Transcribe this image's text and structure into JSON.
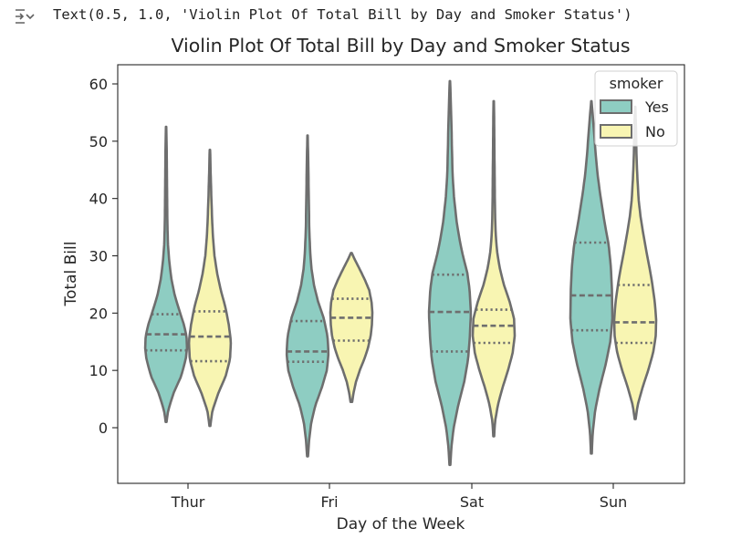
{
  "output": {
    "text": "Text(0.5, 1.0, 'Violin Plot Of Total Bill by Day and Smoker Status')",
    "icon": "output-expand-icon"
  },
  "colors": {
    "yes": "#8ecdc2",
    "no": "#f8f5b2",
    "edge": "#6e6e6e",
    "text": "#262626"
  },
  "chart_data": {
    "type": "violin",
    "title": "Violin Plot Of Total Bill by Day and Smoker Status",
    "xlabel": "Day of the Week",
    "ylabel": "Total Bill",
    "categories": [
      "Thur",
      "Fri",
      "Sat",
      "Sun"
    ],
    "ylim": [
      -10,
      65
    ],
    "yticks": [
      0,
      10,
      20,
      30,
      40,
      50,
      60
    ],
    "grid": false,
    "legend": {
      "title": "smoker",
      "placement": "top-right",
      "entries": [
        "Yes",
        "No"
      ]
    },
    "series": [
      {
        "name": "Yes",
        "violins": [
          {
            "category": "Thur",
            "min": 1,
            "max": 52.5,
            "q1": 13.5,
            "median": 16.3,
            "q3": 19.8,
            "profile": [
              [
                1,
                0.02
              ],
              [
                3,
                0.1
              ],
              [
                6,
                0.35
              ],
              [
                9,
                0.72
              ],
              [
                12,
                0.94
              ],
              [
                14,
                1.0
              ],
              [
                16,
                0.97
              ],
              [
                18,
                0.85
              ],
              [
                20,
                0.67
              ],
              [
                23,
                0.42
              ],
              [
                26,
                0.25
              ],
              [
                29,
                0.15
              ],
              [
                32,
                0.09
              ],
              [
                36,
                0.06
              ],
              [
                40,
                0.05
              ],
              [
                44,
                0.04
              ],
              [
                48,
                0.03
              ],
              [
                52.5,
                0.01
              ]
            ]
          },
          {
            "category": "Fri",
            "min": -5,
            "max": 51,
            "q1": 11.5,
            "median": 13.3,
            "q3": 18.6,
            "profile": [
              [
                -5,
                0.02
              ],
              [
                -2,
                0.08
              ],
              [
                1,
                0.18
              ],
              [
                4,
                0.38
              ],
              [
                7,
                0.68
              ],
              [
                10,
                0.92
              ],
              [
                13,
                1.0
              ],
              [
                16,
                0.95
              ],
              [
                19,
                0.78
              ],
              [
                22,
                0.5
              ],
              [
                25,
                0.3
              ],
              [
                28,
                0.18
              ],
              [
                31,
                0.12
              ],
              [
                35,
                0.08
              ],
              [
                40,
                0.06
              ],
              [
                45,
                0.04
              ],
              [
                51,
                0.01
              ]
            ]
          },
          {
            "category": "Sat",
            "min": -6.5,
            "max": 60.5,
            "q1": 13.3,
            "median": 20.2,
            "q3": 26.7,
            "profile": [
              [
                -6.5,
                0.02
              ],
              [
                -3,
                0.08
              ],
              [
                0,
                0.18
              ],
              [
                4,
                0.4
              ],
              [
                8,
                0.68
              ],
              [
                12,
                0.87
              ],
              [
                16,
                0.95
              ],
              [
                20,
                1.0
              ],
              [
                24,
                0.94
              ],
              [
                27,
                0.83
              ],
              [
                30,
                0.62
              ],
              [
                33,
                0.45
              ],
              [
                36,
                0.32
              ],
              [
                40,
                0.2
              ],
              [
                44,
                0.13
              ],
              [
                48,
                0.1
              ],
              [
                52,
                0.08
              ],
              [
                56,
                0.05
              ],
              [
                60.5,
                0.01
              ]
            ]
          },
          {
            "category": "Sun",
            "min": -4.5,
            "max": 57,
            "q1": 17.0,
            "median": 23.1,
            "q3": 32.3,
            "profile": [
              [
                -4.5,
                0.02
              ],
              [
                -1,
                0.06
              ],
              [
                3,
                0.18
              ],
              [
                7,
                0.4
              ],
              [
                11,
                0.68
              ],
              [
                15,
                0.9
              ],
              [
                19,
                1.0
              ],
              [
                24,
                0.98
              ],
              [
                28,
                0.93
              ],
              [
                32,
                0.82
              ],
              [
                36,
                0.62
              ],
              [
                40,
                0.45
              ],
              [
                44,
                0.3
              ],
              [
                48,
                0.2
              ],
              [
                52,
                0.12
              ],
              [
                57,
                0.01
              ]
            ]
          }
        ]
      },
      {
        "name": "No",
        "violins": [
          {
            "category": "Thur",
            "min": 0.3,
            "max": 48.5,
            "q1": 11.6,
            "median": 15.9,
            "q3": 20.3,
            "profile": [
              [
                0.3,
                0.02
              ],
              [
                3,
                0.12
              ],
              [
                6,
                0.4
              ],
              [
                9,
                0.75
              ],
              [
                12,
                0.96
              ],
              [
                15,
                1.0
              ],
              [
                18,
                0.9
              ],
              [
                21,
                0.74
              ],
              [
                24,
                0.52
              ],
              [
                27,
                0.34
              ],
              [
                30,
                0.22
              ],
              [
                33,
                0.15
              ],
              [
                36,
                0.11
              ],
              [
                40,
                0.07
              ],
              [
                44,
                0.04
              ],
              [
                48.5,
                0.01
              ]
            ]
          },
          {
            "category": "Fri",
            "min": 4.5,
            "max": 30.5,
            "q1": 15.2,
            "median": 19.2,
            "q3": 22.5,
            "profile": [
              [
                4.5,
                0.04
              ],
              [
                6,
                0.1
              ],
              [
                8,
                0.22
              ],
              [
                10,
                0.4
              ],
              [
                12,
                0.62
              ],
              [
                14,
                0.8
              ],
              [
                16,
                0.92
              ],
              [
                18,
                0.98
              ],
              [
                20,
                1.0
              ],
              [
                22,
                0.96
              ],
              [
                24,
                0.85
              ],
              [
                26,
                0.62
              ],
              [
                28,
                0.35
              ],
              [
                29.5,
                0.14
              ],
              [
                30.5,
                0.02
              ]
            ]
          },
          {
            "category": "Sat",
            "min": -1.5,
            "max": 57,
            "q1": 14.8,
            "median": 17.8,
            "q3": 20.6,
            "profile": [
              [
                -1.5,
                0.02
              ],
              [
                1,
                0.06
              ],
              [
                4,
                0.2
              ],
              [
                7,
                0.42
              ],
              [
                10,
                0.68
              ],
              [
                13,
                0.9
              ],
              [
                16,
                1.0
              ],
              [
                19,
                0.97
              ],
              [
                22,
                0.76
              ],
              [
                25,
                0.48
              ],
              [
                28,
                0.28
              ],
              [
                31,
                0.15
              ],
              [
                34,
                0.09
              ],
              [
                38,
                0.06
              ],
              [
                42,
                0.05
              ],
              [
                46,
                0.04
              ],
              [
                50,
                0.03
              ],
              [
                54,
                0.02
              ],
              [
                57,
                0.01
              ]
            ]
          },
          {
            "category": "Sun",
            "min": 1.5,
            "max": 56,
            "q1": 14.8,
            "median": 18.4,
            "q3": 24.9,
            "profile": [
              [
                1.5,
                0.02
              ],
              [
                4,
                0.12
              ],
              [
                7,
                0.35
              ],
              [
                10,
                0.62
              ],
              [
                13,
                0.85
              ],
              [
                16,
                0.98
              ],
              [
                19,
                1.0
              ],
              [
                22,
                0.93
              ],
              [
                25,
                0.82
              ],
              [
                28,
                0.68
              ],
              [
                31,
                0.52
              ],
              [
                34,
                0.38
              ],
              [
                37,
                0.25
              ],
              [
                40,
                0.16
              ],
              [
                44,
                0.1
              ],
              [
                48,
                0.06
              ],
              [
                52,
                0.04
              ],
              [
                56,
                0.01
              ]
            ]
          }
        ]
      }
    ]
  }
}
